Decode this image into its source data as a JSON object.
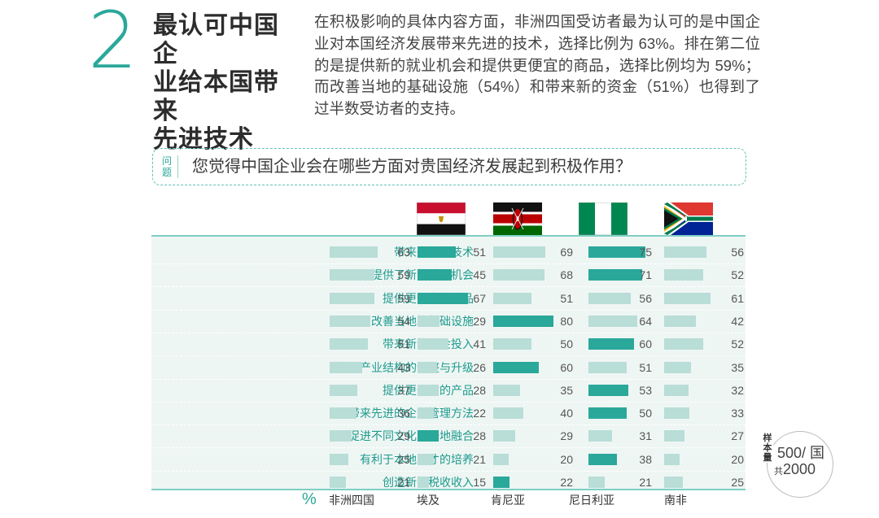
{
  "section": {
    "number": "2",
    "headline": "最认可中国企\n业给本国带来\n先进技术",
    "body": "在积极影响的具体内容方面，非洲四国受访者最为认可的是中国企业对本国经济发展带来先进的技术，选择比例为 63%。排在第二位的是提供新的就业机会和提供更便宜的商品，选择比例均为 59%；而改善当地的基础设施（54%）和带来新的资金（51%）也得到了过半数受访者的支持。"
  },
  "question": {
    "tag": "问题",
    "text": "您觉得中国企业会在哪些方面对贵国经济发展起到积极作用？"
  },
  "sample": {
    "tag": "样本量",
    "per_country": "500/ 国",
    "total_prefix": "共",
    "total": "2000"
  },
  "colors": {
    "accent": "#2aa89a",
    "light_bar": "#b9ddd7",
    "background_band": "#eef6f4"
  },
  "chart_data": {
    "type": "bar",
    "unit_label": "%",
    "columns": [
      "非洲四国",
      "埃及",
      "肯尼亚",
      "尼日利亚",
      "南非"
    ],
    "flags": [
      "egypt-flag",
      "kenya-flag",
      "nigeria-flag",
      "south-africa-flag"
    ],
    "categories": [
      "带来先进的技术",
      "提供了新的就业机会",
      "提供更便宜的商品",
      "改善当地的基础设施",
      "带来新的资金投入",
      "推动产业结构的调整与升级",
      "提供更优质的产品",
      "带来先进的企业管理方法",
      "促进不同文化更好地融合",
      "有利于本地人才的培养",
      "创造新的税收收入"
    ],
    "series": [
      {
        "name": "非洲四国",
        "values": [
          63,
          59,
          59,
          54,
          51,
          43,
          37,
          36,
          29,
          25,
          21
        ]
      },
      {
        "name": "埃及",
        "values": [
          51,
          45,
          67,
          29,
          41,
          26,
          28,
          22,
          28,
          21,
          15
        ]
      },
      {
        "name": "肯尼亚",
        "values": [
          69,
          68,
          51,
          80,
          50,
          60,
          35,
          40,
          29,
          20,
          22
        ]
      },
      {
        "name": "尼日利亚",
        "values": [
          75,
          71,
          56,
          64,
          60,
          51,
          53,
          50,
          31,
          38,
          21
        ]
      },
      {
        "name": "南非",
        "values": [
          56,
          52,
          61,
          42,
          52,
          35,
          32,
          33,
          27,
          20,
          25
        ]
      }
    ],
    "highlight": [
      [
        false,
        true,
        false,
        true,
        false
      ],
      [
        false,
        true,
        false,
        true,
        false
      ],
      [
        false,
        true,
        false,
        false,
        false
      ],
      [
        false,
        false,
        true,
        false,
        false
      ],
      [
        false,
        false,
        false,
        true,
        false
      ],
      [
        false,
        false,
        true,
        false,
        false
      ],
      [
        false,
        false,
        false,
        true,
        false
      ],
      [
        false,
        false,
        false,
        true,
        false
      ],
      [
        false,
        true,
        false,
        false,
        false
      ],
      [
        false,
        false,
        false,
        true,
        false
      ],
      [
        false,
        false,
        true,
        false,
        false
      ]
    ]
  }
}
